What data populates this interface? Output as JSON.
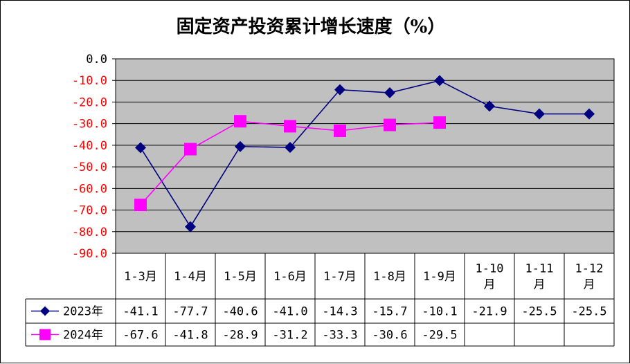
{
  "chart_data": {
    "type": "line",
    "title": "固定资产投资累计增长速度（%）",
    "categories": [
      "1-3月",
      "1-4月",
      "1-5月",
      "1-6月",
      "1-7月",
      "1-8月",
      "1-9月",
      "1-10月",
      "1-11月",
      "1-12月"
    ],
    "category_lines": [
      [
        "1-3月"
      ],
      [
        "1-4月"
      ],
      [
        "1-5月"
      ],
      [
        "1-6月"
      ],
      [
        "1-7月"
      ],
      [
        "1-8月"
      ],
      [
        "1-9月"
      ],
      [
        "1-10",
        "月"
      ],
      [
        "1-11",
        "月"
      ],
      [
        "1-12",
        "月"
      ]
    ],
    "ylim": [
      -90,
      0
    ],
    "yticks": [
      "0.0",
      "-10.0",
      "-20.0",
      "-30.0",
      "-40.0",
      "-50.0",
      "-60.0",
      "-70.0",
      "-80.0",
      "-90.0"
    ],
    "grid": true,
    "legend": "data-table",
    "series": [
      {
        "name": "2023年",
        "color": "#000080",
        "marker": "diamond",
        "values": [
          -41.1,
          -77.7,
          -40.6,
          -41.0,
          -14.3,
          -15.7,
          -10.1,
          -21.9,
          -25.5,
          -25.5
        ],
        "labels": [
          "-41.1",
          "-77.7",
          "-40.6",
          "-41.0",
          "-14.3",
          "-15.7",
          "-10.1",
          "-21.9",
          "-25.5",
          "-25.5"
        ]
      },
      {
        "name": "2024年",
        "color": "#ff00ff",
        "marker": "square",
        "values": [
          -67.6,
          -41.8,
          -28.9,
          -31.2,
          -33.3,
          -30.6,
          -29.5,
          null,
          null,
          null
        ],
        "labels": [
          "-67.6",
          "-41.8",
          "-28.9",
          "-31.2",
          "-33.3",
          "-30.6",
          "-29.5",
          "",
          "",
          ""
        ]
      }
    ],
    "colors": {
      "plot_bg": "#c0c0c0",
      "ytick_zero": "#000000",
      "ytick_negative": "#ff0000"
    }
  }
}
